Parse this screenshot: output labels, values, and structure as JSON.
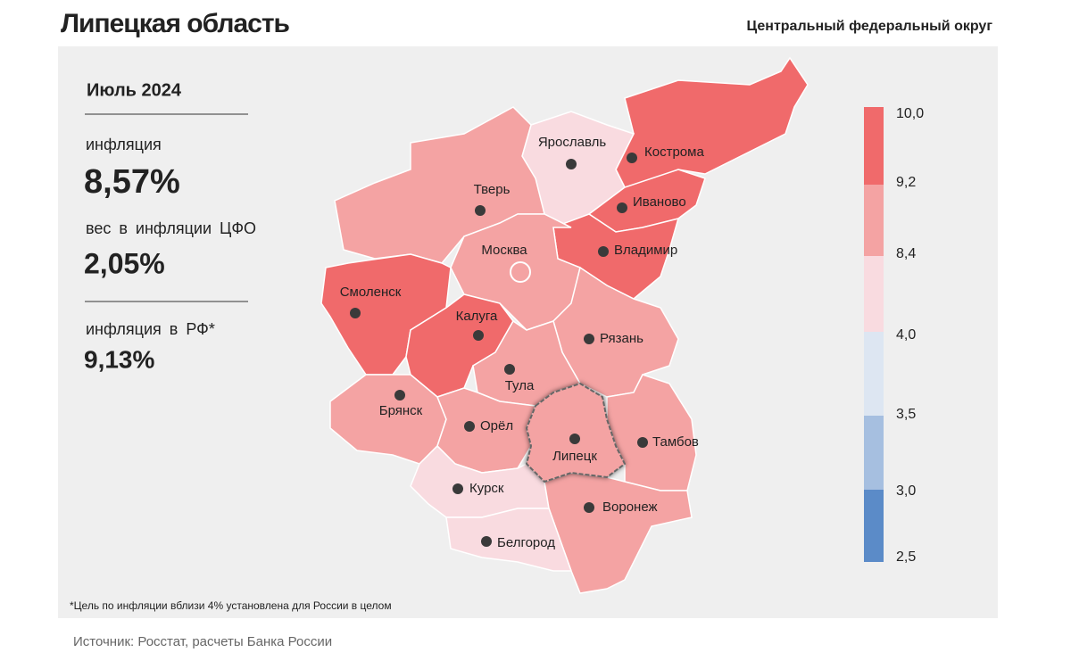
{
  "header": {
    "title": "Липецкая область",
    "subtitle": "Центральный федеральный округ"
  },
  "panel": {
    "period": "Июль 2024",
    "inflation_label": "инфляция",
    "inflation": "8,57%",
    "weight_label": "вес в инфляции ЦФО",
    "weight": "2,05%",
    "rf_label": "инфляция в РФ*",
    "rf_inflation": "9,13%"
  },
  "legend": {
    "labels": [
      "10,0",
      "9,2",
      "8,4",
      "4,0",
      "3,5",
      "3,0",
      "2,5"
    ],
    "colors": [
      "#f06a6b",
      "#f4a3a3",
      "#f9dbe0",
      "#dde6f2",
      "#a6bfe0",
      "#5b8bc8"
    ]
  },
  "regions": [
    {
      "name": "Кострома",
      "color": "#f06a6b"
    },
    {
      "name": "Ярославль",
      "color": "#f9dbe0"
    },
    {
      "name": "Иваново",
      "color": "#f06a6b"
    },
    {
      "name": "Владимир",
      "color": "#f06a6b"
    },
    {
      "name": "Тверь",
      "color": "#f4a3a3"
    },
    {
      "name": "Москва",
      "color": "#f4a3a3"
    },
    {
      "name": "Смоленск",
      "color": "#f06a6b"
    },
    {
      "name": "Калуга",
      "color": "#f06a6b"
    },
    {
      "name": "Рязань",
      "color": "#f4a3a3"
    },
    {
      "name": "Тула",
      "color": "#f4a3a3"
    },
    {
      "name": "Брянск",
      "color": "#f4a3a3"
    },
    {
      "name": "Орёл",
      "color": "#f4a3a3"
    },
    {
      "name": "Тамбов",
      "color": "#f4a3a3"
    },
    {
      "name": "Курск",
      "color": "#f9dbe0"
    },
    {
      "name": "Воронеж",
      "color": "#f4a3a3"
    },
    {
      "name": "Белгород",
      "color": "#f9dbe0"
    },
    {
      "name": "Липецк",
      "color": "#f4a3a3"
    }
  ],
  "footnote": "*Цель по инфляции вблизи 4% установлена для России в целом",
  "source": "Источник: Росстат, расчеты Банка России"
}
